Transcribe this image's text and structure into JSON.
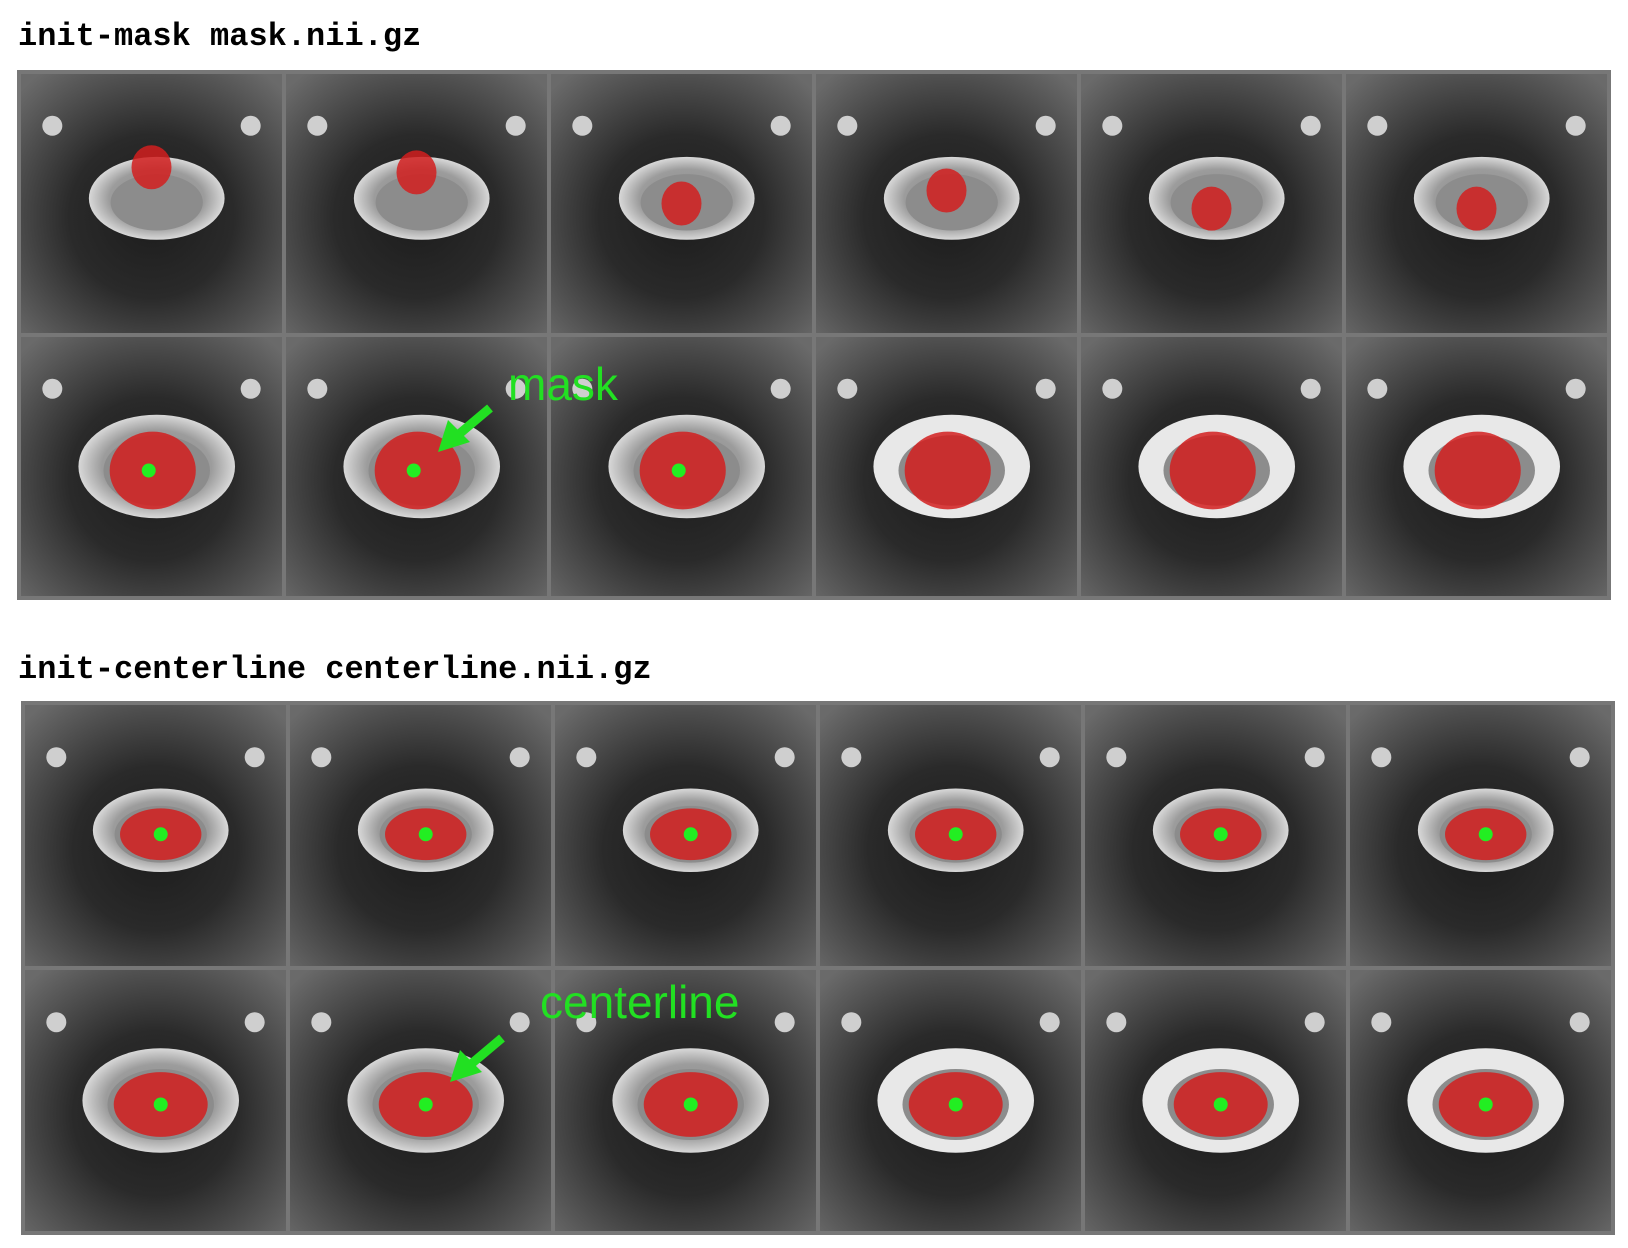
{
  "panels": [
    {
      "title": "init-mask mask.nii.gz",
      "annotation": "mask"
    },
    {
      "title": "init-centerline centerline.nii.gz",
      "annotation": "centerline"
    }
  ]
}
